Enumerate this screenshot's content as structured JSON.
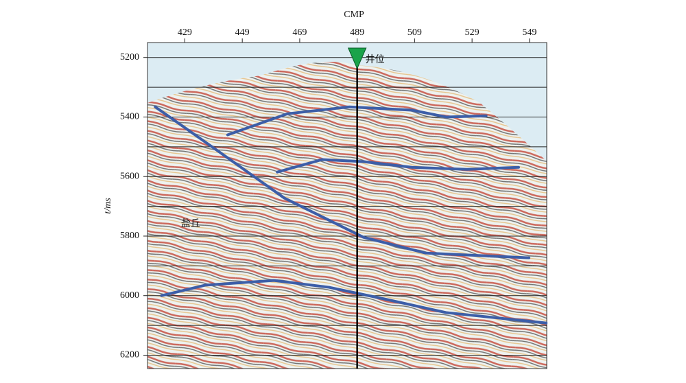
{
  "chart_data": {
    "type": "seismic-section",
    "x_label": "CMP",
    "y_label": "t/ms",
    "xlim": [
      416,
      555
    ],
    "xticks": [
      429,
      449,
      469,
      489,
      509,
      529,
      549
    ],
    "ylim": [
      5150,
      6245
    ],
    "yticks": [
      5200,
      5400,
      5600,
      5800,
      6000,
      6200
    ],
    "minor_grid": [
      5300,
      5500,
      5700,
      5900,
      6100
    ],
    "well": {
      "x": 489,
      "label": "井位",
      "color": "#1aa34a"
    },
    "annotation": {
      "text": "盐丘",
      "x": 431,
      "y": 5760
    },
    "series": [
      {
        "color": "#3c5ea8",
        "x": [
          418.7,
          440.8,
          463.6,
          491.2,
          512.8,
          548.8
        ],
        "values": [
          5366,
          5516,
          5672,
          5804,
          5857,
          5873
        ]
      },
      {
        "color": "#3c5ea8",
        "x": [
          443.9,
          464.8,
          486.4,
          508,
          520,
          533.9
        ],
        "values": [
          5460,
          5389,
          5366,
          5377,
          5400,
          5396
        ]
      },
      {
        "color": "#3c5ea8",
        "x": [
          461.2,
          476.8,
          491.2,
          508,
          527.2,
          545.2
        ],
        "values": [
          5585,
          5543,
          5550,
          5569,
          5576,
          5569
        ]
      },
      {
        "color": "#3c5ea8",
        "x": [
          420.9,
          436,
          460,
          479.2,
          498.4,
          520,
          554.8
        ],
        "values": [
          6000,
          5965,
          5949,
          5972,
          6011,
          6057,
          6092
        ]
      }
    ]
  }
}
